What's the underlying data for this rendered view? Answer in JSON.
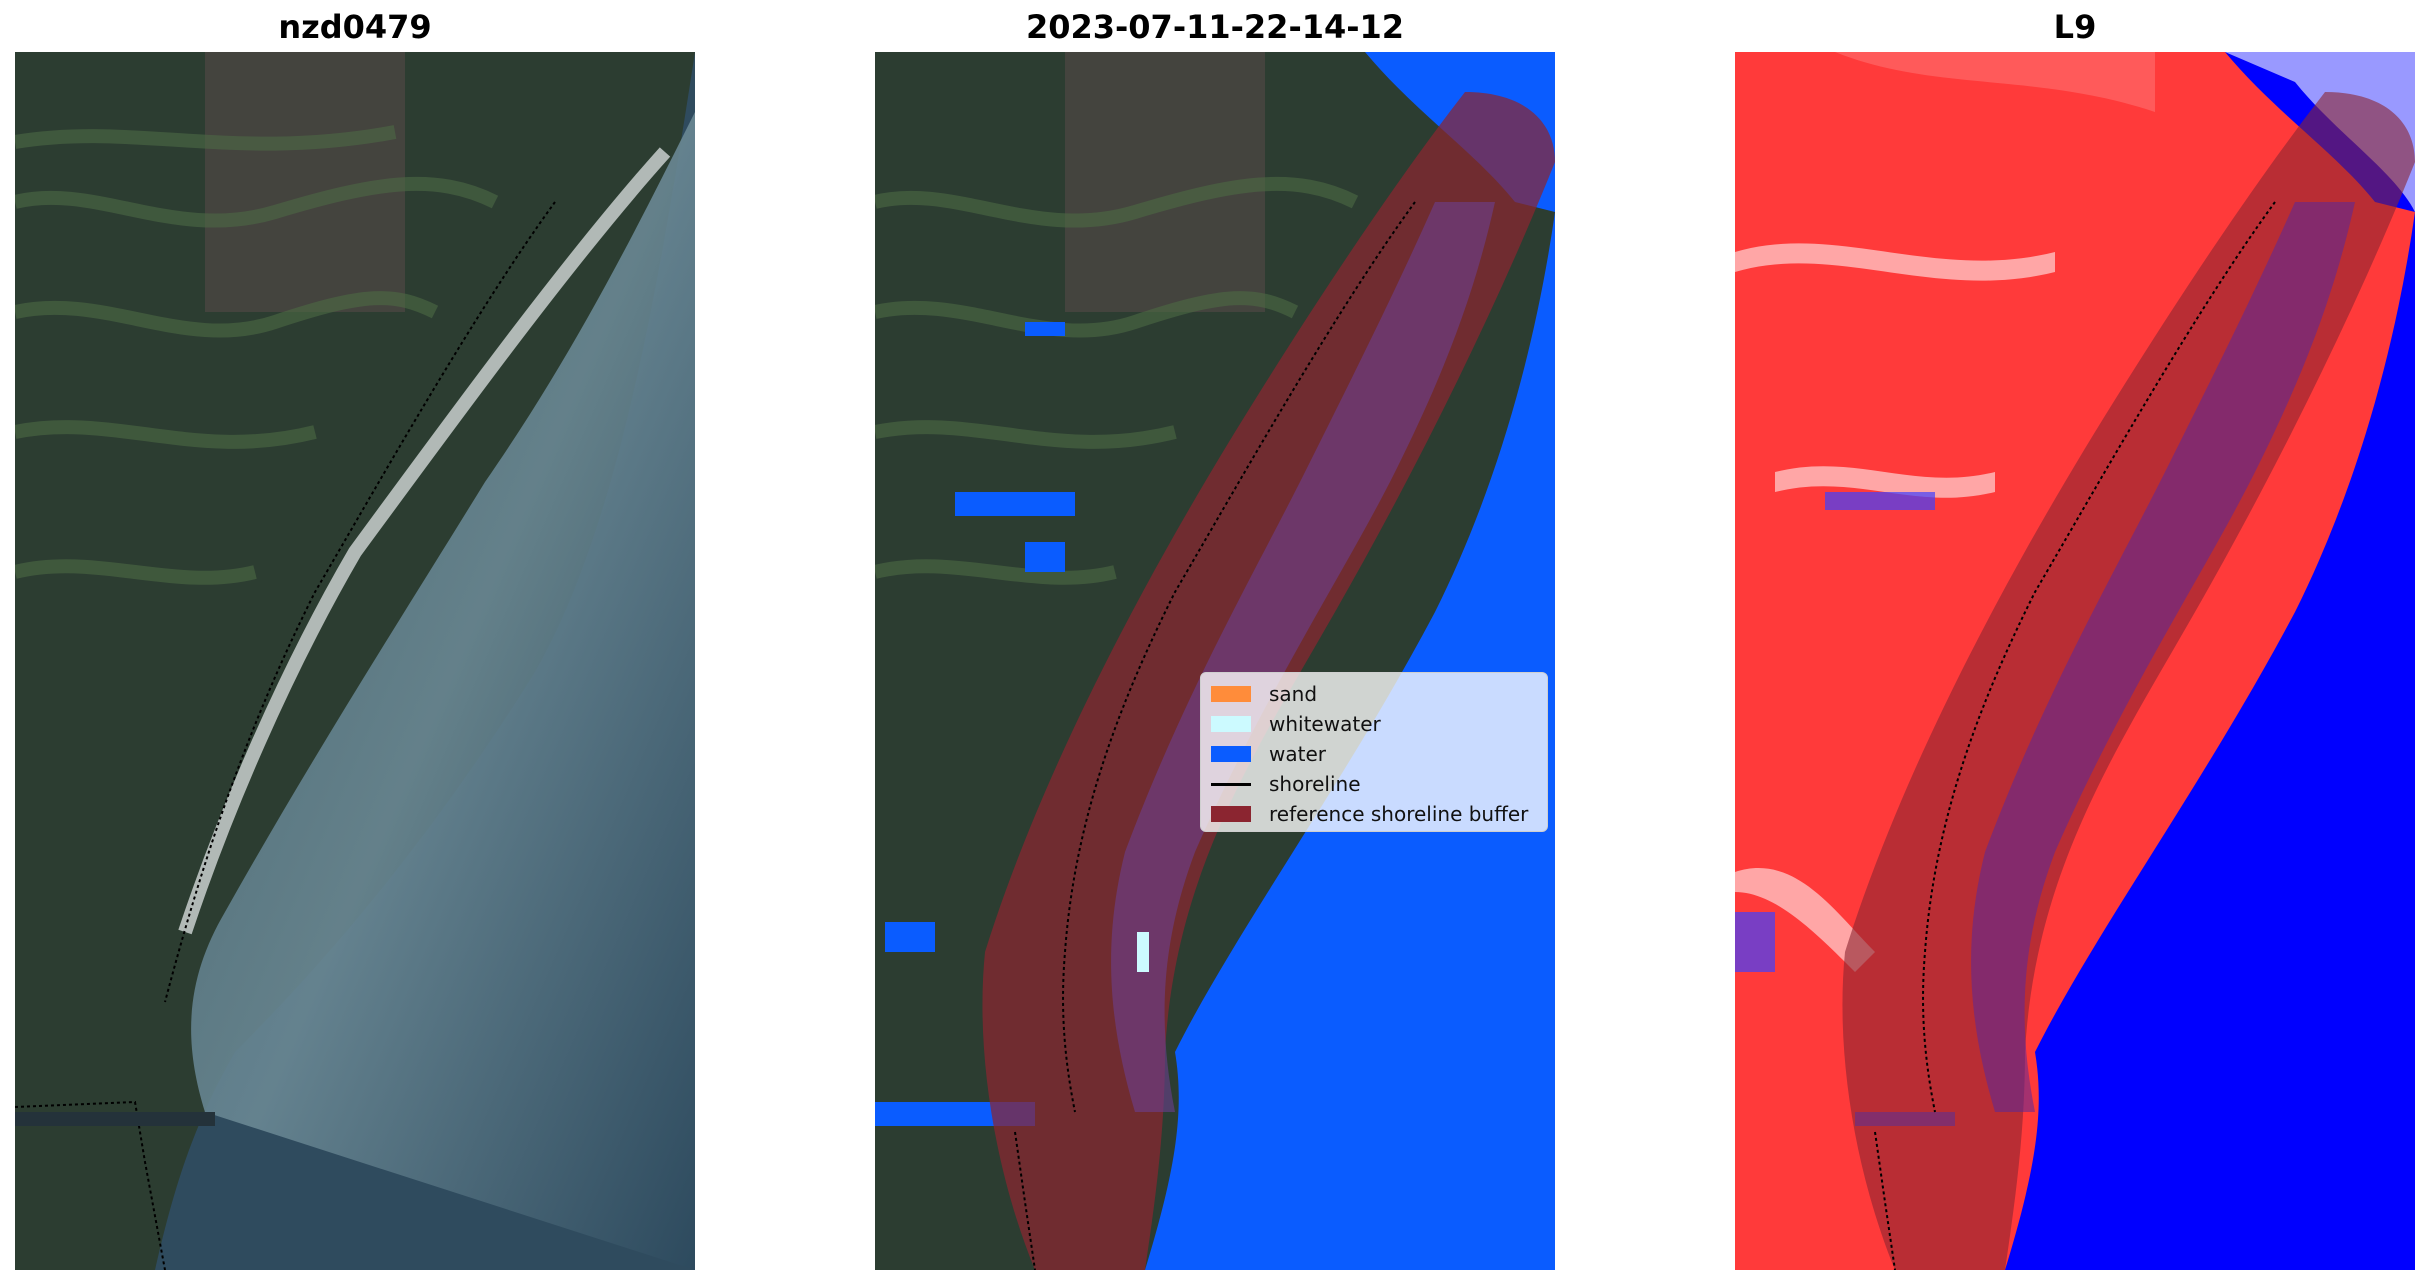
{
  "panels": [
    {
      "title": "nzd0479",
      "kind": "rgb"
    },
    {
      "title": "2023-07-11-22-14-12",
      "kind": "classification"
    },
    {
      "title": "L9",
      "kind": "index"
    }
  ],
  "legend": {
    "items": [
      {
        "label": "sand",
        "color": "#ff8c3a",
        "type": "patch"
      },
      {
        "label": "whitewater",
        "color": "#ccfaff",
        "type": "patch"
      },
      {
        "label": "water",
        "color": "#0a5cff",
        "type": "patch"
      },
      {
        "label": "shoreline",
        "color": "#000000",
        "type": "line"
      },
      {
        "label": "reference shoreline buffer",
        "color": "#8b2530",
        "type": "patch"
      }
    ]
  },
  "colors": {
    "land_dark": "#2b3b30",
    "land_green": "#3f5a3c",
    "ocean_rgb": "#2f4c60",
    "ocean_light": "#6d8a96",
    "water_class": "#0a5cff",
    "buffer": "#8b2530",
    "index_red": "#ff1a1a",
    "index_blue": "#0000ff"
  }
}
